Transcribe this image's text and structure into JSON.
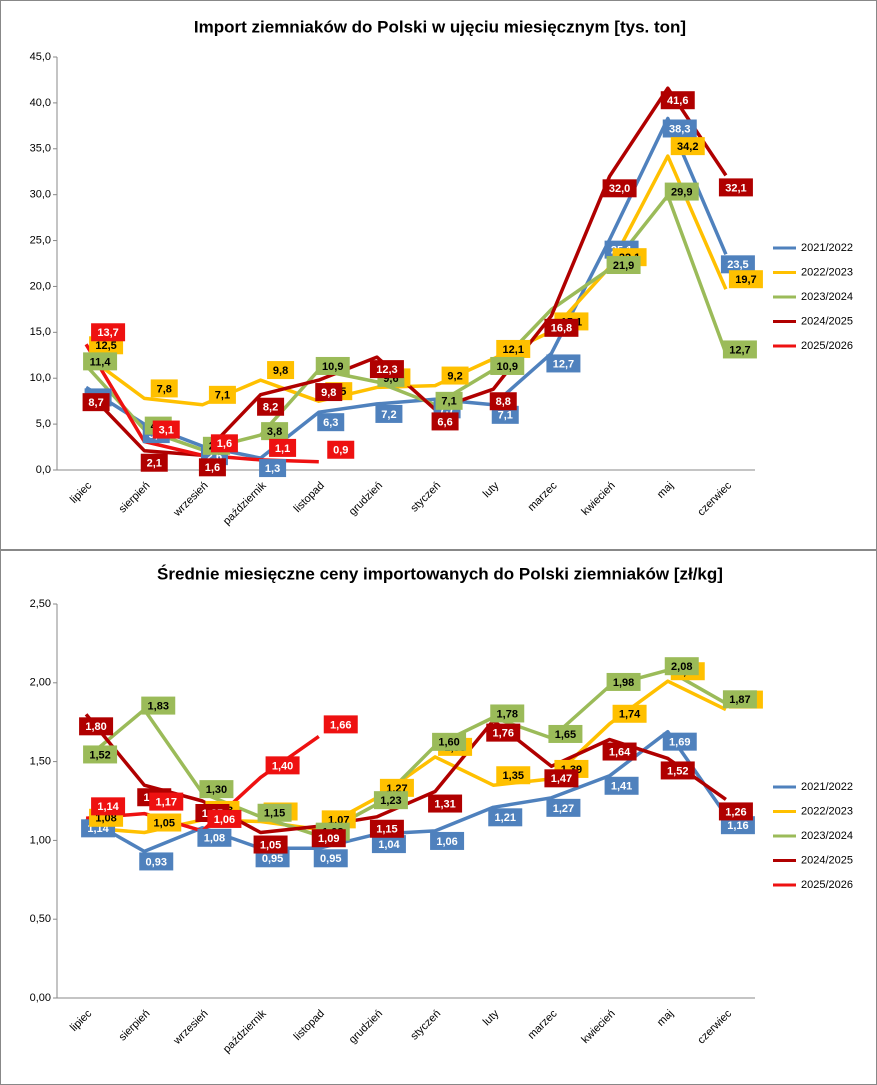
{
  "chart_data": [
    {
      "type": "line",
      "title": "Import ziemniaków  do Polski  w ujęciu miesięcznym [tys. ton]",
      "categories": [
        "lipiec",
        "sierpień",
        "wrzesień",
        "październik",
        "listopad",
        "grudzień",
        "styczeń",
        "luty",
        "marzec",
        "kwiecień",
        "maj",
        "czerwiec"
      ],
      "ylim": [
        0,
        45
      ],
      "yticks": [
        {
          "value": 0,
          "label": "0,0"
        },
        {
          "value": 5,
          "label": "5,0"
        },
        {
          "value": 10,
          "label": "10,0"
        },
        {
          "value": 15,
          "label": "15,0"
        },
        {
          "value": 20,
          "label": "20,0"
        },
        {
          "value": 25,
          "label": "25,0"
        },
        {
          "value": 30,
          "label": "30,0"
        },
        {
          "value": 35,
          "label": "35,0"
        },
        {
          "value": 40,
          "label": "40,0"
        },
        {
          "value": 45,
          "label": "45,0"
        }
      ],
      "legend": "right",
      "series": [
        {
          "name": "2021/2022",
          "color": "#4f81bd",
          "values": [
            9.0,
            5.0,
            2.6,
            1.3,
            6.3,
            7.2,
            7.7,
            7.1,
            12.7,
            25.1,
            38.3,
            23.5
          ],
          "value_labels": [
            "9,0",
            "5,0",
            "2,6",
            "1,3",
            "6,3",
            "7,2",
            "7,7",
            "7,1",
            "12,7",
            "25,1",
            "38,3",
            "23,5"
          ]
        },
        {
          "name": "2022/2023",
          "color": "#ffc000",
          "values": [
            12.5,
            7.8,
            7.1,
            9.8,
            7.5,
            9.0,
            9.2,
            12.1,
            15.1,
            22.1,
            34.2,
            19.7
          ],
          "value_labels": [
            "12,5",
            "7,8",
            "7,1",
            "9,8",
            "7,5",
            "9,0",
            "9,2",
            "12,1",
            "15,1",
            "22,1",
            "34,2",
            "19,7"
          ]
        },
        {
          "name": "2023/2024",
          "color": "#9bbb59",
          "values": [
            11.4,
            4.4,
            2.2,
            3.8,
            10.9,
            9.6,
            7.1,
            10.9,
            17.5,
            21.9,
            29.9,
            12.7
          ],
          "value_labels": [
            "11,4",
            "4,4",
            "2,2",
            "3,8",
            "10,9",
            "9,6",
            "7,1",
            "10,9",
            null,
            "21,9",
            "29,9",
            "12,7"
          ]
        },
        {
          "name": "2024/2025",
          "color": "#b00000",
          "values": [
            8.7,
            2.1,
            1.6,
            8.2,
            9.8,
            12.3,
            6.6,
            8.8,
            16.8,
            32.0,
            41.6,
            32.1
          ],
          "value_labels": [
            "8,7",
            "2,1",
            "1,6",
            "8,2",
            "9,8",
            "12,3",
            "6,6",
            "8,8",
            "16,8",
            "32,0",
            "41,6",
            "32,1"
          ]
        },
        {
          "name": "2025/2026",
          "color": "#ee1111",
          "values": [
            13.7,
            3.1,
            1.6,
            1.1,
            0.9,
            null,
            null,
            null,
            null,
            null,
            null,
            null
          ],
          "value_labels": [
            "13,7",
            "3,1",
            "1,6",
            "1,1",
            "0,9",
            null,
            null,
            null,
            null,
            null,
            null,
            null
          ]
        }
      ]
    },
    {
      "type": "line",
      "title": "Średnie miesięczne ceny importowanych do Polski ziemniaków  [zł/kg]",
      "categories": [
        "lipiec",
        "sierpień",
        "wrzesień",
        "październik",
        "listopad",
        "grudzień",
        "styczeń",
        "luty",
        "marzec",
        "kwiecień",
        "maj",
        "czerwiec"
      ],
      "ylim": [
        0,
        2.5
      ],
      "yticks": [
        {
          "value": 0,
          "label": "0,00"
        },
        {
          "value": 0.5,
          "label": "0,50"
        },
        {
          "value": 1,
          "label": "1,00"
        },
        {
          "value": 1.5,
          "label": "1,50"
        },
        {
          "value": 2,
          "label": "2,00"
        },
        {
          "value": 2.5,
          "label": "2,50"
        }
      ],
      "legend": "right",
      "series": [
        {
          "name": "2021/2022",
          "color": "#4f81bd",
          "values": [
            1.14,
            0.93,
            1.08,
            0.95,
            0.95,
            1.04,
            1.06,
            1.21,
            1.27,
            1.41,
            1.69,
            1.16
          ],
          "value_labels": [
            "1,14",
            "0,93",
            "1,08",
            "0,95",
            "0,95",
            "1,04",
            "1,06",
            "1,21",
            "1,27",
            "1,41",
            "1,69",
            "1,16"
          ]
        },
        {
          "name": "2022/2023",
          "color": "#ffc000",
          "values": [
            1.08,
            1.05,
            1.13,
            1.12,
            1.07,
            1.27,
            1.53,
            1.35,
            1.39,
            1.74,
            2.01,
            1.83
          ],
          "value_labels": [
            "1,08",
            "1,05",
            "1,13",
            "1,12",
            "1,07",
            "1,27",
            "1,53",
            "1,35",
            "1,39",
            "1,74",
            "2,01",
            "1,83"
          ]
        },
        {
          "name": "2023/2024",
          "color": "#9bbb59",
          "values": [
            1.52,
            1.83,
            1.3,
            1.15,
            1.03,
            1.23,
            1.6,
            1.78,
            1.65,
            1.98,
            2.08,
            1.87
          ],
          "value_labels": [
            "1,52",
            "1,83",
            "1,30",
            "1,15",
            "1,03",
            "1,23",
            "1,60",
            "1,78",
            "1,65",
            "1,98",
            "2,08",
            "1,87"
          ]
        },
        {
          "name": "2024/2025",
          "color": "#b00000",
          "values": [
            1.8,
            1.35,
            1.25,
            1.05,
            1.09,
            1.15,
            1.31,
            1.76,
            1.47,
            1.64,
            1.52,
            1.26
          ],
          "value_labels": [
            "1,80",
            "1,35",
            "1,25",
            "1,05",
            "1,09",
            "1,15",
            "1,31",
            "1,76",
            "1,47",
            "1,64",
            "1,52",
            "1,26"
          ]
        },
        {
          "name": "2025/2026",
          "color": "#ee1111",
          "values": [
            1.14,
            1.17,
            1.06,
            1.4,
            1.66,
            null,
            null,
            null,
            null,
            null,
            null,
            null
          ],
          "value_labels": [
            "1,14",
            "1,17",
            "1,06",
            "1,40",
            "1,66",
            null,
            null,
            null,
            null,
            null,
            null,
            null
          ]
        }
      ]
    }
  ]
}
